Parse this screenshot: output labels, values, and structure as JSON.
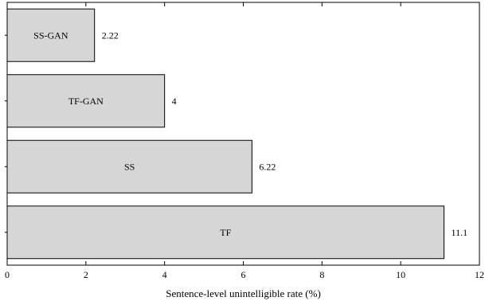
{
  "chart_data": {
    "type": "bar",
    "orientation": "horizontal",
    "categories": [
      "SS-GAN",
      "TF-GAN",
      "SS",
      "TF"
    ],
    "values": [
      2.22,
      4,
      6.22,
      11.1
    ],
    "value_labels": [
      "2.22",
      "4",
      "6.22",
      "11.1"
    ],
    "title": "",
    "xlabel": "Sentence-level unintelligible rate (%)",
    "ylabel": "",
    "xlim": [
      0,
      12
    ],
    "xticks": [
      0,
      2,
      4,
      6,
      8,
      10,
      12
    ],
    "xtick_labels": [
      "0",
      "2",
      "4",
      "6",
      "8",
      "10",
      "12"
    ],
    "grid": false,
    "legend": "none",
    "bar_color": "#d6d6d6",
    "bar_edge_color": "#000000"
  }
}
